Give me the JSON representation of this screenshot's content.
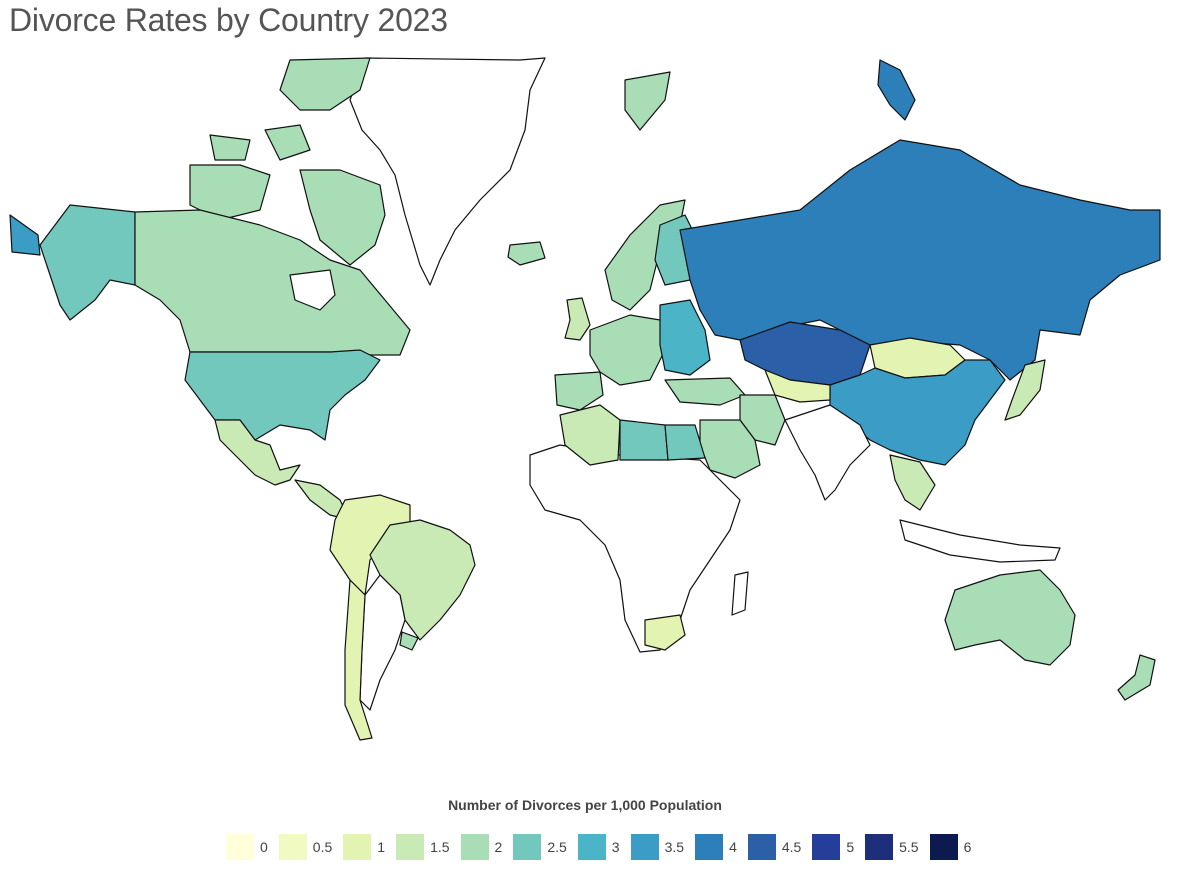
{
  "title": "Divorce Rates by Country 2023",
  "legend": {
    "title": "Number of Divorces per 1,000 Population",
    "items": [
      {
        "label": "0",
        "color": "#ffffd9"
      },
      {
        "label": "0.5",
        "color": "#f2fac3"
      },
      {
        "label": "1",
        "color": "#e3f4b2"
      },
      {
        "label": "1.5",
        "color": "#c9e9b5"
      },
      {
        "label": "2",
        "color": "#a8ddb5"
      },
      {
        "label": "2.5",
        "color": "#73c8bd"
      },
      {
        "label": "3",
        "color": "#4bb4c7"
      },
      {
        "label": "3.5",
        "color": "#3b9cc6"
      },
      {
        "label": "4",
        "color": "#2c7fb8"
      },
      {
        "label": "4.5",
        "color": "#2b5fa8"
      },
      {
        "label": "5",
        "color": "#253e99"
      },
      {
        "label": "5.5",
        "color": "#1d2f7a"
      },
      {
        "label": "6",
        "color": "#0d1a50"
      }
    ]
  },
  "map": {
    "regions": [
      {
        "name": "Canada",
        "value": 2.0
      },
      {
        "name": "United States",
        "value": 2.5
      },
      {
        "name": "Alaska",
        "value": 2.5
      },
      {
        "name": "Mexico",
        "value": 1.5
      },
      {
        "name": "Central America",
        "value": 1.5
      },
      {
        "name": "Colombia / Venezuela / Ecuador / Peru",
        "value": 1.0
      },
      {
        "name": "Brazil",
        "value": 1.5
      },
      {
        "name": "Uruguay",
        "value": 2.0
      },
      {
        "name": "Chile",
        "value": 1.0
      },
      {
        "name": "Iceland",
        "value": 2.0
      },
      {
        "name": "Svalbard",
        "value": 2.0
      },
      {
        "name": "Scandinavia",
        "value": 2.0
      },
      {
        "name": "Finland",
        "value": 2.5
      },
      {
        "name": "United Kingdom",
        "value": 1.5
      },
      {
        "name": "Spain / Portugal",
        "value": 2.0
      },
      {
        "name": "Western Europe",
        "value": 2.0
      },
      {
        "name": "Eastern Europe",
        "value": 3.0
      },
      {
        "name": "Russia",
        "value": 4.0
      },
      {
        "name": "Kazakhstan",
        "value": 4.5
      },
      {
        "name": "Mongolia",
        "value": 1.0
      },
      {
        "name": "China",
        "value": 3.5
      },
      {
        "name": "Japan",
        "value": 1.5
      },
      {
        "name": "Central Asia",
        "value": 1.0
      },
      {
        "name": "Turkey / Middle East",
        "value": 2.0
      },
      {
        "name": "Iran",
        "value": 2.0
      },
      {
        "name": "Saudi Arabia",
        "value": 2.0
      },
      {
        "name": "Algeria",
        "value": 1.5
      },
      {
        "name": "Libya",
        "value": 2.5
      },
      {
        "name": "Egypt",
        "value": 2.5
      },
      {
        "name": "South Africa",
        "value": 1.0
      },
      {
        "name": "Southeast Asia",
        "value": 1.5
      },
      {
        "name": "Australia",
        "value": 2.0
      },
      {
        "name": "New Zealand",
        "value": 2.0
      }
    ]
  }
}
